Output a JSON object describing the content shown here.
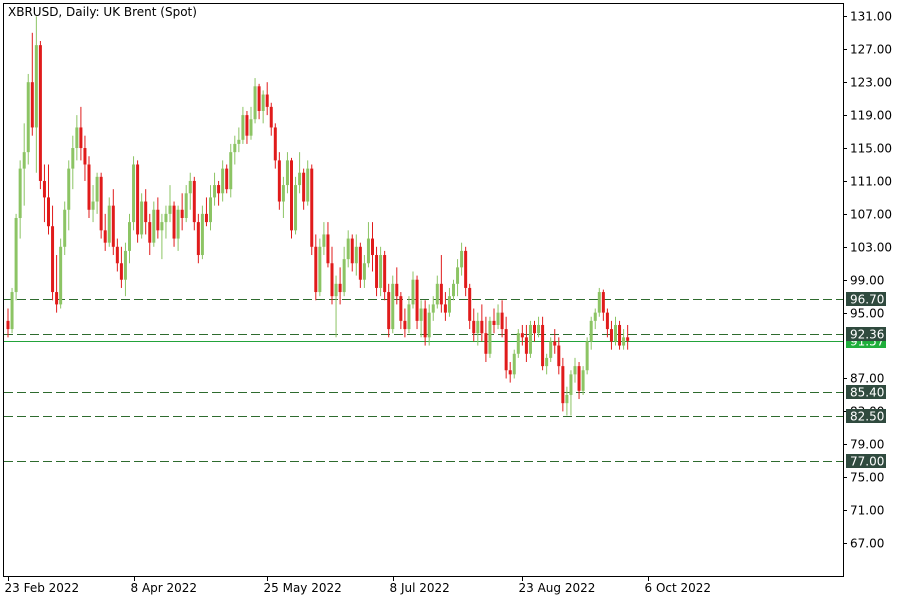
{
  "chart_data": {
    "type": "candlestick",
    "title": "XBRUSD, Daily:  UK Brent (Spot)",
    "y_range": [
      63.0,
      132.5
    ],
    "y_ticks": [
      "131.00",
      "127.00",
      "123.00",
      "119.00",
      "115.00",
      "111.00",
      "107.00",
      "103.00",
      "99.00",
      "95.00",
      "87.00",
      "83.00",
      "79.00",
      "75.00",
      "71.00",
      "67.00"
    ],
    "x_tick_labels": [
      {
        "label": "23 Feb 2022",
        "index": 0
      },
      {
        "label": "8 Apr 2022",
        "index": 31
      },
      {
        "label": "25 May 2022",
        "index": 64
      },
      {
        "label": "8 Jul 2022",
        "index": 95
      },
      {
        "label": "23 Aug 2022",
        "index": 127
      },
      {
        "label": "6 Oct 2022",
        "index": 158
      }
    ],
    "horizontal_levels": [
      {
        "value": 96.7,
        "label": "96.70",
        "style": "dashed"
      },
      {
        "value": 92.36,
        "label": "92.36",
        "style": "dashed"
      },
      {
        "value": 85.4,
        "label": "85.40",
        "style": "dashed"
      },
      {
        "value": 82.5,
        "label": "82.50",
        "style": "dashed"
      },
      {
        "value": 77.0,
        "label": "77.00",
        "style": "dashed"
      }
    ],
    "current_price": {
      "value": 91.57,
      "label": "91.57"
    },
    "colors": {
      "up": "#8cc464",
      "down": "#e01b1b",
      "level_line": "#2e6b2e",
      "level_tag": "#2f4a3e",
      "price_tag": "#1fae3b",
      "price_line": "#22a33a"
    },
    "candles": [
      [
        94.0,
        95.5,
        92.0,
        93.0
      ],
      [
        93.0,
        98.0,
        92.5,
        97.5
      ],
      [
        97.5,
        107.0,
        96.5,
        106.5
      ],
      [
        106.5,
        113.5,
        104.0,
        112.5
      ],
      [
        112.5,
        118.0,
        108.0,
        114.5
      ],
      [
        114.5,
        124.0,
        113.0,
        123.0
      ],
      [
        123.0,
        129.0,
        116.5,
        117.5
      ],
      [
        117.5,
        131.0,
        112.0,
        127.5
      ],
      [
        127.5,
        128.0,
        110.0,
        111.0
      ],
      [
        111.0,
        113.0,
        106.0,
        109.0
      ],
      [
        109.0,
        113.0,
        104.5,
        105.5
      ],
      [
        105.5,
        108.0,
        96.5,
        97.5
      ],
      [
        97.5,
        102.0,
        95.0,
        96.0
      ],
      [
        96.0,
        104.0,
        95.5,
        103.0
      ],
      [
        103.0,
        108.5,
        102.0,
        107.5
      ],
      [
        107.5,
        113.5,
        105.0,
        112.5
      ],
      [
        112.5,
        116.5,
        110.0,
        115.0
      ],
      [
        115.0,
        119.0,
        113.5,
        117.5
      ],
      [
        117.5,
        120.0,
        113.5,
        115.0
      ],
      [
        115.0,
        116.5,
        111.0,
        113.0
      ],
      [
        113.0,
        114.0,
        106.5,
        107.5
      ],
      [
        107.5,
        110.5,
        106.0,
        108.5
      ],
      [
        108.5,
        112.0,
        107.0,
        111.5
      ],
      [
        111.5,
        112.0,
        104.0,
        105.0
      ],
      [
        105.0,
        107.0,
        102.5,
        103.5
      ],
      [
        103.5,
        109.0,
        103.0,
        108.0
      ],
      [
        108.0,
        110.0,
        102.0,
        103.0
      ],
      [
        103.0,
        104.0,
        100.0,
        101.0
      ],
      [
        101.0,
        103.0,
        98.0,
        99.0
      ],
      [
        99.0,
        103.5,
        97.0,
        102.5
      ],
      [
        102.5,
        107.0,
        101.0,
        106.0
      ],
      [
        106.0,
        114.0,
        105.0,
        113.0
      ],
      [
        113.0,
        113.5,
        103.5,
        104.5
      ],
      [
        104.5,
        109.5,
        104.0,
        108.5
      ],
      [
        108.5,
        110.0,
        104.5,
        106.0
      ],
      [
        106.0,
        107.0,
        102.0,
        103.5
      ],
      [
        103.5,
        108.5,
        103.0,
        107.5
      ],
      [
        107.5,
        109.0,
        104.0,
        105.0
      ],
      [
        105.0,
        107.0,
        101.5,
        106.0
      ],
      [
        106.0,
        108.0,
        104.0,
        107.0
      ],
      [
        107.0,
        110.5,
        106.0,
        108.0
      ],
      [
        108.0,
        108.5,
        103.0,
        104.0
      ],
      [
        104.0,
        108.0,
        102.5,
        107.5
      ],
      [
        107.5,
        109.5,
        105.0,
        106.5
      ],
      [
        106.5,
        110.5,
        106.0,
        109.5
      ],
      [
        109.5,
        112.0,
        107.5,
        111.0
      ],
      [
        111.0,
        111.5,
        105.0,
        106.0
      ],
      [
        106.0,
        107.0,
        101.0,
        102.0
      ],
      [
        102.0,
        108.0,
        101.5,
        107.0
      ],
      [
        107.0,
        109.0,
        105.5,
        106.0
      ],
      [
        106.0,
        110.5,
        105.0,
        109.0
      ],
      [
        109.0,
        112.0,
        108.0,
        110.5
      ],
      [
        110.5,
        111.0,
        108.0,
        109.5
      ],
      [
        109.5,
        113.5,
        108.5,
        112.5
      ],
      [
        112.5,
        113.0,
        109.5,
        110.0
      ],
      [
        110.0,
        115.5,
        109.0,
        114.5
      ],
      [
        114.5,
        116.5,
        113.0,
        115.5
      ],
      [
        115.5,
        117.5,
        114.5,
        116.0
      ],
      [
        116.0,
        120.0,
        115.5,
        119.0
      ],
      [
        119.0,
        119.5,
        115.5,
        116.5
      ],
      [
        116.5,
        120.0,
        116.0,
        118.5
      ],
      [
        118.5,
        123.5,
        118.0,
        122.5
      ],
      [
        122.5,
        122.8,
        118.5,
        119.5
      ],
      [
        119.5,
        122.0,
        118.0,
        121.5
      ],
      [
        121.5,
        123.0,
        119.0,
        120.0
      ],
      [
        120.0,
        120.5,
        116.5,
        117.5
      ],
      [
        117.5,
        118.0,
        112.5,
        113.5
      ],
      [
        113.5,
        114.5,
        107.5,
        108.5
      ],
      [
        108.5,
        111.5,
        106.5,
        110.5
      ],
      [
        110.5,
        114.5,
        109.5,
        113.5
      ],
      [
        113.5,
        113.8,
        104.0,
        105.0
      ],
      [
        105.0,
        111.5,
        104.5,
        110.5
      ],
      [
        110.5,
        114.5,
        109.5,
        112.0
      ],
      [
        112.0,
        112.5,
        107.5,
        108.5
      ],
      [
        108.5,
        113.5,
        108.0,
        112.5
      ],
      [
        112.5,
        113.0,
        102.0,
        103.0
      ],
      [
        103.0,
        104.5,
        96.5,
        97.5
      ],
      [
        97.5,
        104.0,
        97.0,
        103.0
      ],
      [
        103.0,
        106.0,
        102.0,
        104.5
      ],
      [
        104.5,
        106.0,
        100.5,
        101.0
      ],
      [
        101.0,
        103.0,
        96.0,
        97.0
      ],
      [
        97.0,
        99.5,
        92.0,
        98.5
      ],
      [
        98.5,
        100.5,
        96.0,
        97.5
      ],
      [
        97.5,
        103.0,
        97.0,
        101.5
      ],
      [
        101.5,
        105.0,
        100.5,
        104.0
      ],
      [
        104.0,
        104.5,
        100.0,
        101.0
      ],
      [
        101.0,
        104.5,
        99.5,
        103.0
      ],
      [
        103.0,
        103.5,
        98.0,
        99.0
      ],
      [
        99.0,
        102.0,
        98.0,
        101.0
      ],
      [
        101.0,
        106.0,
        100.5,
        104.0
      ],
      [
        104.0,
        106.0,
        100.0,
        102.0
      ],
      [
        102.0,
        103.0,
        97.0,
        98.0
      ],
      [
        98.0,
        103.0,
        97.0,
        102.0
      ],
      [
        102.0,
        102.5,
        96.5,
        97.5
      ],
      [
        97.5,
        98.5,
        92.0,
        93.0
      ],
      [
        93.0,
        99.5,
        92.5,
        98.5
      ],
      [
        98.5,
        100.5,
        96.0,
        97.0
      ],
      [
        97.0,
        97.5,
        93.0,
        94.0
      ],
      [
        94.0,
        95.5,
        92.0,
        93.0
      ],
      [
        93.0,
        97.0,
        92.5,
        96.0
      ],
      [
        96.0,
        100.0,
        95.5,
        99.0
      ],
      [
        99.0,
        99.5,
        93.0,
        94.0
      ],
      [
        94.0,
        96.5,
        92.0,
        95.5
      ],
      [
        95.5,
        96.5,
        91.0,
        92.0
      ],
      [
        92.0,
        96.0,
        91.0,
        95.0
      ],
      [
        95.0,
        97.0,
        94.0,
        96.0
      ],
      [
        96.0,
        99.5,
        95.5,
        98.5
      ],
      [
        98.5,
        102.0,
        95.0,
        96.0
      ],
      [
        96.0,
        97.5,
        94.0,
        95.0
      ],
      [
        95.0,
        98.0,
        94.5,
        97.0
      ],
      [
        97.0,
        99.0,
        96.5,
        98.5
      ],
      [
        98.5,
        101.5,
        97.0,
        100.5
      ],
      [
        100.5,
        103.5,
        99.5,
        102.5
      ],
      [
        102.5,
        103.0,
        97.0,
        98.0
      ],
      [
        98.0,
        98.5,
        93.0,
        94.0
      ],
      [
        94.0,
        95.5,
        91.5,
        92.5
      ],
      [
        92.5,
        95.0,
        91.0,
        94.0
      ],
      [
        94.0,
        96.0,
        91.5,
        92.5
      ],
      [
        92.5,
        94.5,
        89.0,
        90.0
      ],
      [
        90.0,
        94.5,
        89.5,
        94.0
      ],
      [
        94.0,
        95.5,
        92.5,
        93.5
      ],
      [
        93.5,
        96.0,
        93.0,
        95.0
      ],
      [
        95.0,
        96.5,
        92.0,
        93.0
      ],
      [
        93.0,
        94.5,
        87.0,
        88.0
      ],
      [
        88.0,
        89.0,
        86.5,
        87.5
      ],
      [
        87.5,
        90.5,
        87.0,
        90.0
      ],
      [
        90.0,
        93.0,
        89.5,
        92.5
      ],
      [
        92.5,
        93.5,
        91.0,
        92.0
      ],
      [
        92.0,
        93.5,
        89.0,
        90.0
      ],
      [
        90.0,
        94.0,
        89.5,
        93.5
      ],
      [
        93.5,
        94.0,
        91.5,
        92.5
      ],
      [
        92.5,
        94.5,
        92.0,
        93.5
      ],
      [
        93.5,
        94.5,
        88.0,
        88.5
      ],
      [
        88.5,
        90.0,
        87.5,
        89.5
      ],
      [
        89.5,
        92.0,
        89.0,
        91.5
      ],
      [
        91.5,
        93.0,
        90.0,
        91.0
      ],
      [
        91.0,
        92.0,
        87.5,
        88.5
      ],
      [
        88.5,
        89.5,
        83.0,
        84.0
      ],
      [
        84.0,
        86.0,
        82.5,
        85.0
      ],
      [
        85.0,
        88.0,
        82.5,
        87.5
      ],
      [
        87.5,
        89.5,
        86.5,
        88.5
      ],
      [
        88.5,
        89.0,
        84.5,
        85.5
      ],
      [
        85.5,
        88.5,
        85.0,
        88.0
      ],
      [
        88.0,
        92.0,
        87.5,
        91.5
      ],
      [
        91.5,
        94.5,
        90.5,
        94.0
      ],
      [
        94.0,
        95.5,
        93.0,
        95.0
      ],
      [
        95.0,
        98.0,
        94.5,
        97.5
      ],
      [
        97.5,
        97.8,
        94.0,
        95.0
      ],
      [
        95.0,
        95.5,
        92.0,
        93.0
      ],
      [
        93.0,
        94.0,
        90.5,
        91.5
      ],
      [
        91.5,
        94.5,
        91.0,
        93.5
      ],
      [
        93.5,
        94.0,
        90.5,
        91.0
      ],
      [
        91.0,
        93.0,
        90.5,
        92.0
      ],
      [
        92.0,
        93.5,
        90.5,
        91.57
      ]
    ]
  }
}
